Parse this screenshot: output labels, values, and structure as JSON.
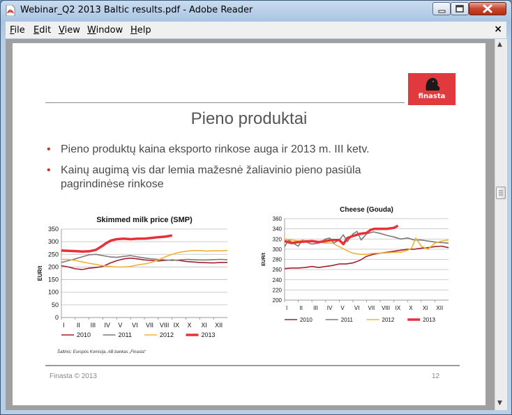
{
  "window": {
    "title": "Webinar_Q2 2013 Baltic results.pdf - Adobe Reader",
    "close_glyph": "✕",
    "maximize_glyph": "□",
    "minimize_glyph": "–"
  },
  "menu": {
    "items": [
      "File",
      "Edit",
      "View",
      "Window",
      "Help"
    ],
    "close_label": "×"
  },
  "slide": {
    "title": "Pieno produktai",
    "logo_text": "finasta",
    "bullets": [
      "Pieno produktų kaina eksporto rinkose auga ir 2013 m. III ketv.",
      "Kainų augimą vis dar lemia mažesnė žaliavinio pieno pasiūla",
      "pagrindinėse rinkose"
    ],
    "source": "Šaltinis: Europos Komisija, AB bankas „Finasta“",
    "footer_left": "Finasta © 2013",
    "footer_right": "12"
  },
  "colors": {
    "s2010": "#a3202a",
    "s2011": "#7a7a7a",
    "s2012": "#f2b134",
    "s2013": "#e8303a",
    "logo": "#e03a3e"
  },
  "chart_data": [
    {
      "type": "line",
      "title": "Skimmed milk price (SMP)",
      "ylabel": "EUR/t",
      "ylim": [
        0,
        350
      ],
      "yticks": [
        0,
        50,
        100,
        150,
        200,
        250,
        300,
        350
      ],
      "categories": [
        "I",
        "II",
        "III",
        "IV",
        "V",
        "VI",
        "VII",
        "VIII",
        "IX",
        "X",
        "XI",
        "XII"
      ],
      "x_range": [
        1,
        13
      ],
      "grid": true,
      "legend_position": "bottom",
      "series": [
        {
          "name": "2010",
          "x": [
            1,
            1.5,
            2,
            2.5,
            3,
            3.5,
            4,
            4.5,
            5,
            5.5,
            6,
            6.5,
            7,
            7.5,
            8,
            8.5,
            9,
            9.5,
            10,
            10.5,
            11,
            11.5,
            12,
            12.5,
            13
          ],
          "values": [
            205,
            200,
            193,
            190,
            195,
            198,
            202,
            215,
            225,
            232,
            235,
            232,
            228,
            226,
            224,
            226,
            228,
            226,
            222,
            220,
            218,
            217,
            216,
            218,
            218
          ]
        },
        {
          "name": "2011",
          "x": [
            1,
            1.5,
            2,
            2.5,
            3,
            3.5,
            4,
            4.5,
            5,
            5.5,
            6,
            6.5,
            7,
            7.5,
            8,
            8.5,
            9,
            9.5,
            10,
            10.5,
            11,
            11.5,
            12,
            12.5,
            13
          ],
          "values": [
            218,
            225,
            232,
            240,
            248,
            250,
            245,
            240,
            238,
            242,
            245,
            240,
            236,
            232,
            230,
            228,
            226,
            228,
            230,
            229,
            228,
            228,
            229,
            230,
            229
          ]
        },
        {
          "name": "2012",
          "x": [
            1,
            1.5,
            2,
            2.5,
            3,
            3.5,
            4,
            4.5,
            5,
            5.5,
            6,
            6.5,
            7,
            7.5,
            8,
            8.5,
            9,
            9.5,
            10,
            10.5,
            11,
            11.5,
            12,
            12.5,
            13
          ],
          "values": [
            230,
            230,
            226,
            220,
            215,
            210,
            205,
            202,
            200,
            200,
            202,
            208,
            212,
            218,
            228,
            240,
            250,
            258,
            262,
            265,
            265,
            263,
            264,
            264,
            265
          ]
        },
        {
          "name": "2013",
          "x": [
            1,
            1.5,
            2,
            2.5,
            3,
            3.5,
            4,
            4.2,
            4.6,
            5,
            5.5,
            6,
            6.5,
            7,
            7.5,
            8,
            8.5,
            9
          ],
          "values": [
            265,
            264,
            263,
            261,
            262,
            268,
            285,
            293,
            305,
            310,
            312,
            310,
            312,
            312,
            315,
            318,
            320,
            325
          ]
        }
      ]
    },
    {
      "type": "line",
      "title": "Cheese (Gouda)",
      "ylabel": "EUR/t",
      "ylim": [
        200,
        360
      ],
      "yticks": [
        200,
        220,
        240,
        260,
        280,
        300,
        320,
        340,
        360
      ],
      "categories": [
        "I",
        "II",
        "III",
        "IV",
        "V",
        "VI",
        "VII",
        "VIII",
        "IX",
        "X",
        "XI",
        "XII"
      ],
      "x_range": [
        1,
        13
      ],
      "grid": true,
      "legend_position": "bottom",
      "series": [
        {
          "name": "2010",
          "x": [
            1,
            1.5,
            2,
            2.5,
            3,
            3.5,
            4,
            4.5,
            5,
            5.5,
            6,
            6.5,
            7,
            7.5,
            8,
            8.5,
            9,
            9.5,
            10,
            10.5,
            11,
            11.5,
            12,
            12.5,
            13
          ],
          "values": [
            262,
            263,
            263,
            264,
            266,
            264,
            266,
            268,
            271,
            271,
            273,
            278,
            286,
            290,
            292,
            294,
            296,
            298,
            300,
            300,
            302,
            303,
            305,
            306,
            303
          ]
        },
        {
          "name": "2011",
          "x": [
            1,
            1.3,
            1.6,
            2,
            2.3,
            2.6,
            3,
            3.5,
            4,
            4.3,
            4.6,
            5,
            5.3,
            5.6,
            6,
            6.3,
            6.6,
            7,
            7.5,
            8,
            8.5,
            9,
            9.5,
            10,
            10.5,
            11,
            11.5,
            12,
            12.5,
            13
          ],
          "values": [
            305,
            318,
            312,
            306,
            318,
            314,
            310,
            312,
            320,
            322,
            312,
            318,
            328,
            315,
            330,
            335,
            318,
            330,
            334,
            331,
            327,
            324,
            320,
            322,
            318,
            318,
            316,
            314,
            313,
            312
          ]
        },
        {
          "name": "2012",
          "x": [
            1,
            1.5,
            2,
            2.5,
            3,
            3.5,
            4,
            4.5,
            5,
            5.5,
            6,
            6.5,
            7,
            7.5,
            8,
            8.5,
            9,
            9.5,
            10,
            10.3,
            10.6,
            11,
            11.5,
            12,
            12.5,
            13
          ],
          "values": [
            320,
            318,
            316,
            317,
            316,
            314,
            312,
            312,
            305,
            298,
            292,
            290,
            290,
            292,
            292,
            293,
            294,
            294,
            298,
            302,
            322,
            306,
            300,
            312,
            316,
            318
          ]
        },
        {
          "name": "2013",
          "x": [
            1,
            1.5,
            2,
            2.5,
            3,
            3.5,
            4,
            4.5,
            5,
            5.3,
            5.6,
            6,
            6.5,
            7,
            7.3,
            7.6,
            8,
            8.5,
            9,
            9.3
          ],
          "values": [
            316,
            312,
            314,
            315,
            316,
            314,
            316,
            318,
            318,
            310,
            322,
            326,
            330,
            332,
            338,
            340,
            340,
            340,
            342,
            346
          ]
        }
      ]
    }
  ]
}
